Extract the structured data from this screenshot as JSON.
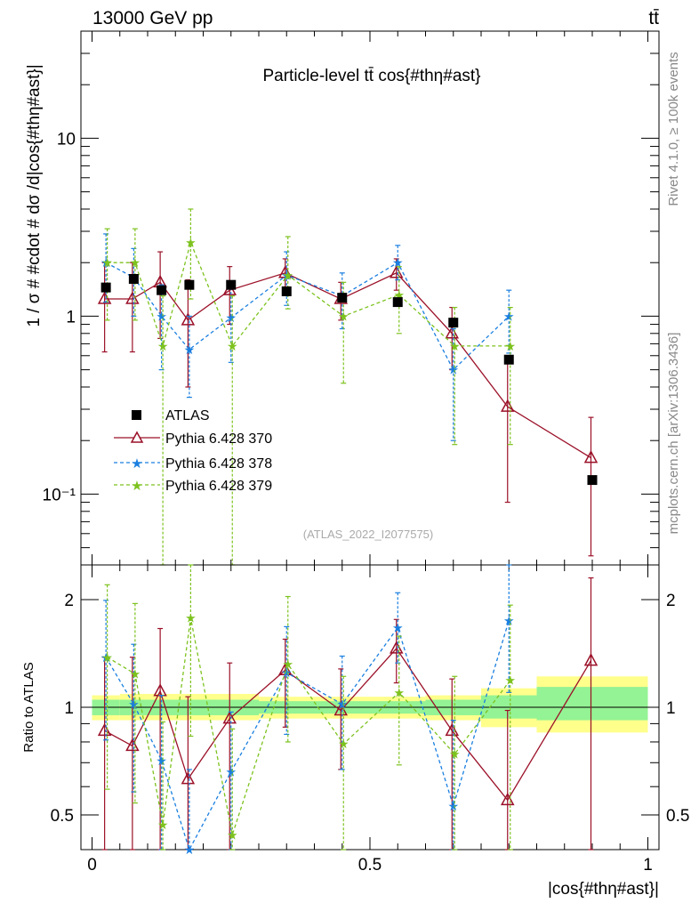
{
  "header": {
    "energy_label": "13000 GeV pp",
    "process_label": "tt̄",
    "rivet_label": "Rivet 4.1.0, ≥ 100k events",
    "site_label": "mcplots.cern.ch [arXiv:1306.3436]"
  },
  "chart_data": [
    {
      "type": "line",
      "panel": "main",
      "title": "Particle-level tt̄ cos{#thη#ast}",
      "analysis_label": "(ATLAS_2022_I2077575)",
      "xlabel": "|cos{#thη#ast}|",
      "ylabel": "1 / σ # #cdot # dσ /d|cos{#thη#ast}|",
      "yscale": "log",
      "xlim": [
        -0.02,
        1.02
      ],
      "ylim": [
        0.04,
        40
      ],
      "yticks": [
        {
          "value": 0.1,
          "label": "10⁻¹"
        },
        {
          "value": 1,
          "label": "1"
        },
        {
          "value": 10,
          "label": "10"
        }
      ],
      "legend": [
        {
          "label": "ATLAS",
          "color": "#000000"
        },
        {
          "label": "Pythia 6.428 370",
          "color": "#9b1028"
        },
        {
          "label": "Pythia 6.428 378",
          "color": "#1a7fe0"
        },
        {
          "label": "Pythia 6.428 379",
          "color": "#7dc21e"
        }
      ],
      "data_points": {
        "x": [
          0.025,
          0.075,
          0.125,
          0.175,
          0.25,
          0.35,
          0.45,
          0.55,
          0.65,
          0.75,
          0.9
        ],
        "y": [
          1.45,
          1.62,
          1.4,
          1.5,
          1.5,
          1.38,
          1.27,
          1.2,
          0.92,
          0.57,
          0.12
        ]
      },
      "series": [
        {
          "name": "Pythia 6.428 370",
          "x": [
            0.025,
            0.075,
            0.125,
            0.175,
            0.25,
            0.35,
            0.45,
            0.55,
            0.65,
            0.75,
            0.9
          ],
          "y": [
            1.25,
            1.25,
            1.55,
            0.95,
            1.4,
            1.75,
            1.25,
            1.75,
            0.8,
            0.31,
            0.16
          ],
          "lo": [
            0.63,
            0.63,
            0.75,
            0.4,
            0.9,
            1.4,
            0.95,
            1.4,
            0.5,
            0.09,
            0.045
          ],
          "hi": [
            2.0,
            2.0,
            2.3,
            1.6,
            1.9,
            2.1,
            1.55,
            2.1,
            1.12,
            0.55,
            0.27
          ]
        },
        {
          "name": "Pythia 6.428 378",
          "x": [
            0.025,
            0.075,
            0.125,
            0.175,
            0.25,
            0.35,
            0.45,
            0.55,
            0.65,
            0.75
          ],
          "y": [
            2.0,
            1.65,
            1.0,
            0.65,
            0.98,
            1.7,
            1.3,
            2.0,
            0.5,
            1.0
          ],
          "lo": [
            1.2,
            1.0,
            0.5,
            0.35,
            0.55,
            1.15,
            0.85,
            1.6,
            0.2,
            0.62
          ],
          "hi": [
            2.9,
            2.4,
            1.5,
            1.0,
            1.45,
            2.3,
            1.75,
            2.5,
            0.85,
            1.4
          ]
        },
        {
          "name": "Pythia 6.428 379",
          "x": [
            0.025,
            0.075,
            0.125,
            0.175,
            0.25,
            0.35,
            0.45,
            0.55,
            0.65,
            0.75
          ],
          "y": [
            2.0,
            2.0,
            0.68,
            2.6,
            0.68,
            1.7,
            1.0,
            1.32,
            0.68,
            0.68
          ],
          "lo": [
            0.95,
            0.95,
            0.03,
            1.25,
            0.03,
            1.1,
            0.42,
            0.8,
            0.19,
            0.19
          ],
          "hi": [
            3.1,
            3.1,
            1.3,
            4.0,
            1.3,
            2.8,
            1.55,
            1.9,
            1.12,
            1.12
          ]
        }
      ]
    },
    {
      "type": "line",
      "panel": "ratio",
      "ylabel": "Ratio to ATLAS",
      "yscale": "log",
      "ylim": [
        0.4,
        2.5
      ],
      "xticks": [
        {
          "value": 0,
          "label": "0"
        },
        {
          "value": 0.5,
          "label": "0.5"
        },
        {
          "value": 1,
          "label": "1"
        }
      ],
      "yticks": [
        {
          "value": 0.5,
          "label": "0.5"
        },
        {
          "value": 1,
          "label": "1"
        },
        {
          "value": 2,
          "label": "2"
        }
      ],
      "bands": [
        {
          "x0": 0.0,
          "x1": 0.05,
          "inner_lo": 0.95,
          "inner_hi": 1.05,
          "outer_lo": 0.92,
          "outer_hi": 1.08
        },
        {
          "x0": 0.05,
          "x1": 0.3,
          "inner_lo": 0.95,
          "inner_hi": 1.05,
          "outer_lo": 0.92,
          "outer_hi": 1.09
        },
        {
          "x0": 0.3,
          "x1": 0.6,
          "inner_lo": 0.96,
          "inner_hi": 1.04,
          "outer_lo": 0.93,
          "outer_hi": 1.07
        },
        {
          "x0": 0.6,
          "x1": 0.7,
          "inner_lo": 0.95,
          "inner_hi": 1.05,
          "outer_lo": 0.92,
          "outer_hi": 1.08
        },
        {
          "x0": 0.7,
          "x1": 0.8,
          "inner_lo": 0.93,
          "inner_hi": 1.08,
          "outer_lo": 0.88,
          "outer_hi": 1.13
        },
        {
          "x0": 0.8,
          "x1": 1.0,
          "inner_lo": 0.92,
          "inner_hi": 1.14,
          "outer_lo": 0.85,
          "outer_hi": 1.22
        }
      ],
      "series": [
        {
          "name": "Pythia 6.428 370",
          "x": [
            0.025,
            0.075,
            0.125,
            0.175,
            0.25,
            0.35,
            0.45,
            0.55,
            0.65,
            0.75,
            0.9
          ],
          "y": [
            0.86,
            0.78,
            1.11,
            0.63,
            0.93,
            1.27,
            0.98,
            1.46,
            0.86,
            0.55,
            1.35
          ],
          "lo": [
            0.37,
            0.3,
            0.3,
            0.3,
            0.3,
            0.88,
            0.67,
            1.17,
            0.3,
            0.3,
            0.3
          ],
          "hi": [
            1.38,
            1.38,
            1.66,
            1.07,
            1.33,
            1.55,
            1.28,
            1.76,
            1.2,
            0.98,
            2.3
          ]
        },
        {
          "name": "Pythia 6.428 378",
          "x": [
            0.025,
            0.075,
            0.125,
            0.175,
            0.25,
            0.35,
            0.45,
            0.55,
            0.65,
            0.75
          ],
          "y": [
            1.38,
            1.02,
            0.71,
            0.38,
            0.66,
            1.25,
            1.02,
            1.67,
            0.53,
            1.75
          ],
          "lo": [
            0.81,
            0.58,
            0.36,
            0.3,
            0.38,
            0.84,
            0.67,
            1.33,
            0.3,
            1.1
          ],
          "hi": [
            1.99,
            1.5,
            1.08,
            0.67,
            0.97,
            1.68,
            1.39,
            2.09,
            0.92,
            2.5
          ]
        },
        {
          "name": "Pythia 6.428 379",
          "x": [
            0.025,
            0.075,
            0.125,
            0.175,
            0.25,
            0.35,
            0.45,
            0.55,
            0.65,
            0.75
          ],
          "y": [
            1.38,
            1.24,
            0.47,
            1.78,
            0.44,
            1.32,
            0.79,
            1.1,
            0.74,
            1.19
          ],
          "lo": [
            0.59,
            0.54,
            0.3,
            0.83,
            0.3,
            0.8,
            0.3,
            0.69,
            0.3,
            0.3
          ],
          "hi": [
            2.2,
            1.95,
            0.91,
            2.5,
            0.87,
            2.04,
            1.22,
            1.58,
            1.22,
            1.93
          ]
        }
      ]
    }
  ]
}
